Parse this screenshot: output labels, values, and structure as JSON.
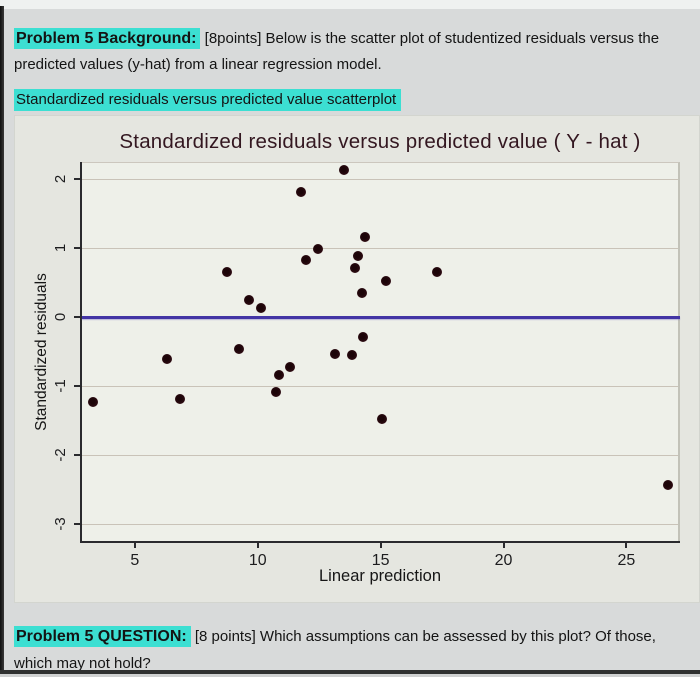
{
  "header": {
    "label": "Problem 5 Background:",
    "text_line1": " [8points] Below is the scatter plot of studentized residuals versus the",
    "text_line2": "predicted values (y-hat) from a linear regression model.",
    "subheading": "Standardized residuals versus predicted value scatterplot"
  },
  "footer": {
    "label": "Problem 5 QUESTION:",
    "text_line1": " [8 points] Which assumptions can be assessed by this plot? Of those,",
    "text_line2": "which may not hold?"
  },
  "colors": {
    "highlight": "#3cdfd2",
    "page_bg": "#d8dada",
    "figure_bg": "#e5e6e0",
    "plot_bg": "#eef0e9",
    "grid": "#c9c3b8",
    "axis": "#2a2a2e",
    "zero_line": "#4335a5",
    "point": "#2d0b12",
    "title": "#331720",
    "text": "#141414"
  },
  "chart_data": {
    "type": "scatter",
    "title": "Standardized residuals versus predicted value ( Y - hat )",
    "xlabel": "Linear prediction",
    "ylabel": "Standardized residuals",
    "xlim": [
      2.85,
      27.1
    ],
    "ylim": [
      -3.24,
      2.25
    ],
    "x_ticks": [
      5,
      10,
      15,
      20,
      25
    ],
    "y_ticks": [
      2,
      1,
      0,
      -1,
      -2,
      -3
    ],
    "gridlines_y": [
      2,
      1,
      -1,
      -2,
      -3
    ],
    "zero_line_y": 0,
    "grid": true,
    "legend": false,
    "points": [
      [
        13.5,
        2.13
      ],
      [
        11.75,
        1.81
      ],
      [
        14.35,
        1.16
      ],
      [
        12.45,
        0.99
      ],
      [
        14.1,
        0.89
      ],
      [
        11.95,
        0.83
      ],
      [
        13.95,
        0.72
      ],
      [
        8.75,
        0.66
      ],
      [
        17.3,
        0.65
      ],
      [
        15.2,
        0.53
      ],
      [
        14.25,
        0.35
      ],
      [
        9.65,
        0.25
      ],
      [
        10.15,
        0.14
      ],
      [
        14.3,
        -0.29
      ],
      [
        9.25,
        -0.46
      ],
      [
        13.15,
        -0.53
      ],
      [
        13.85,
        -0.55
      ],
      [
        6.3,
        -0.61
      ],
      [
        11.3,
        -0.72
      ],
      [
        10.85,
        -0.84
      ],
      [
        10.75,
        -1.08
      ],
      [
        3.3,
        -1.22
      ],
      [
        6.85,
        -1.18
      ],
      [
        15.05,
        -1.47
      ],
      [
        26.7,
        -2.43
      ]
    ]
  }
}
